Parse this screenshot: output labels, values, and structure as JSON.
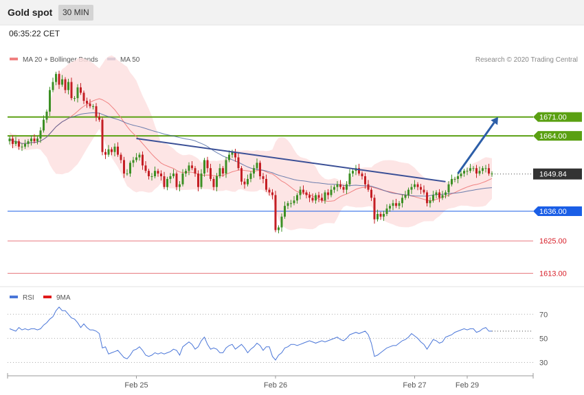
{
  "header": {
    "title": "Gold spot",
    "timeframe": "30 MIN",
    "timestamp": "06:35:22 CET"
  },
  "colors": {
    "green_level": "#5aa012",
    "blue_level": "#1a5ee6",
    "red_level": "#d8202a",
    "candle_up": "#3c8f24",
    "candle_down": "#c41e24",
    "bands": "#fde0e0",
    "ma20": "#f08080",
    "ma50": "#3a5a9a",
    "trendline": "#3a4f96",
    "arrow": "#2c5ea8",
    "rsi": "#4a76d8"
  },
  "chart_data": [
    {
      "type": "candlestick",
      "title": "Gold spot",
      "timeframe": "30 MIN",
      "credit": "Research © 2020 Trading Central",
      "legend": [
        {
          "name": "MA 20 + Bollinger Bands",
          "color": "#f08080"
        },
        {
          "name": "MA 50",
          "color": "#3a5a9a"
        }
      ],
      "ylim": [
        1608,
        1690
      ],
      "x_ticks": [
        {
          "label": "Feb 25",
          "index": 41
        },
        {
          "label": "Feb 26",
          "index": 86
        },
        {
          "label": "Feb 27",
          "index": 131
        },
        {
          "label": "Feb 29",
          "index": 148
        }
      ],
      "last_index": 156,
      "levels": [
        {
          "label": "1671.00",
          "value": 1671.0,
          "kind": "resistance",
          "color": "#5aa012"
        },
        {
          "label": "1664.00",
          "value": 1664.0,
          "kind": "resistance",
          "color": "#5aa012"
        },
        {
          "label": "1649.84",
          "value": 1649.84,
          "kind": "last",
          "color": "#333333"
        },
        {
          "label": "1636.00",
          "value": 1636.0,
          "kind": "pivot",
          "color": "#1a5ee6"
        },
        {
          "label": "1625.00",
          "value": 1625.0,
          "kind": "support",
          "color": "#d8202a"
        },
        {
          "label": "1613.00",
          "value": 1613.0,
          "kind": "support",
          "color": "#d8202a"
        }
      ],
      "trendline": {
        "from": [
          41,
          1663
        ],
        "to": [
          141,
          1647
        ]
      },
      "arrow": {
        "from": [
          145,
          1650
        ],
        "to": [
          158,
          1671
        ]
      },
      "close": [
        1663,
        1661,
        1662,
        1660,
        1660,
        1661,
        1662,
        1663,
        1662,
        1663,
        1666,
        1670,
        1673,
        1681,
        1684,
        1687,
        1683,
        1685,
        1681,
        1684,
        1678,
        1678,
        1682,
        1680,
        1677,
        1676,
        1675,
        1675,
        1671,
        1670,
        1658,
        1657,
        1659,
        1658,
        1660,
        1657,
        1655,
        1650,
        1650,
        1654,
        1655,
        1656,
        1657,
        1653,
        1651,
        1649,
        1649,
        1651,
        1650,
        1649,
        1645,
        1648,
        1649,
        1650,
        1645,
        1646,
        1650,
        1651,
        1653,
        1652,
        1650,
        1645,
        1650,
        1655,
        1652,
        1648,
        1645,
        1649,
        1652,
        1650,
        1655,
        1657,
        1658,
        1656,
        1652,
        1647,
        1646,
        1648,
        1650,
        1652,
        1654,
        1649,
        1648,
        1644,
        1643,
        1642,
        1629,
        1630,
        1634,
        1638,
        1639,
        1639,
        1640,
        1642,
        1644,
        1643,
        1642,
        1641,
        1640,
        1642,
        1641,
        1640,
        1643,
        1642,
        1644,
        1645,
        1646,
        1645,
        1644,
        1646,
        1650,
        1651,
        1652,
        1650,
        1649,
        1646,
        1644,
        1641,
        1633,
        1635,
        1634,
        1635,
        1637,
        1638,
        1639,
        1638,
        1639,
        1641,
        1642,
        1644,
        1645,
        1646,
        1645,
        1644,
        1643,
        1639,
        1640,
        1642,
        1643,
        1641,
        1642,
        1643,
        1646,
        1648,
        1648,
        1649,
        1650,
        1651,
        1651,
        1652,
        1652,
        1650,
        1651,
        1652,
        1652,
        1650,
        1650
      ]
    },
    {
      "type": "line",
      "legend": [
        {
          "name": "RSI",
          "color": "#4a76d8"
        },
        {
          "name": "9MA",
          "color": "#e01a1a"
        }
      ],
      "ylim": [
        20,
        85
      ],
      "y_ticks": [
        70,
        50,
        30
      ],
      "rsi": [
        58,
        57,
        56,
        59,
        57,
        58,
        57,
        58,
        58,
        57,
        58,
        61,
        63,
        66,
        68,
        73,
        76,
        73,
        73,
        70,
        67,
        66,
        63,
        59,
        62,
        59,
        57,
        57,
        56,
        54,
        42,
        43,
        37,
        38,
        39,
        40,
        37,
        34,
        33,
        36,
        40,
        41,
        43,
        40,
        36,
        35,
        36,
        38,
        37,
        38,
        37,
        38,
        39,
        41,
        40,
        36,
        43,
        45,
        47,
        45,
        41,
        43,
        48,
        51,
        45,
        41,
        42,
        41,
        38,
        38,
        42,
        44,
        45,
        41,
        43,
        45,
        42,
        38,
        41,
        43,
        46,
        44,
        40,
        43,
        43,
        35,
        32,
        36,
        38,
        42,
        43,
        45,
        45,
        44,
        45,
        46,
        47,
        48,
        47,
        46,
        47,
        48,
        47,
        48,
        49,
        50,
        51,
        49,
        48,
        50,
        53,
        54,
        55,
        54,
        55,
        56,
        53,
        46,
        35,
        36,
        38,
        40,
        42,
        43,
        44,
        44,
        46,
        48,
        49,
        51,
        54,
        52,
        50,
        47,
        45,
        41,
        45,
        49,
        48,
        46,
        47,
        51,
        52,
        53,
        55,
        56,
        57,
        58,
        57,
        58,
        58,
        55,
        56,
        58,
        59,
        56,
        56
      ]
    }
  ]
}
